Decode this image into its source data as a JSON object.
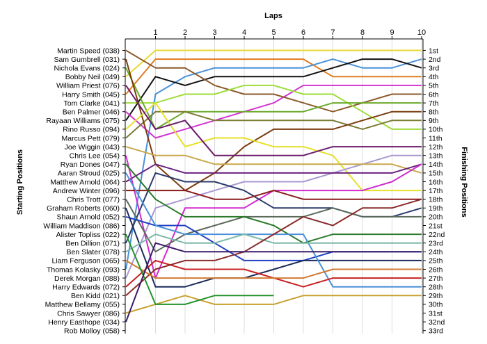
{
  "chart_data": {
    "type": "line",
    "title": "",
    "top_axis_label": "Laps",
    "left_axis_label": "Starting Positions",
    "right_axis_label": "Finishing Positions",
    "laps": [
      1,
      2,
      3,
      4,
      5,
      6,
      7,
      8,
      9,
      10
    ],
    "starting_order": [
      "Martin Speed (038)",
      "Sam Gumbrell (031)",
      "Nichola Evans (024)",
      "Bobby Neil (049)",
      "William Priest (076)",
      "Harry Smith (045)",
      "Tom Clarke (041)",
      "Ben Palmer (046)",
      "Rayaan Williams (075)",
      "Rino Russo (094)",
      "Marcus Pett (079)",
      "Joe Wiggin (043)",
      "Chris Lee (054)",
      "Ryan Dones (047)",
      "Aaran Stroud (025)",
      "Matthew Arnold (064)",
      "Andrew Winter (096)",
      "Chris Trott (077)",
      "Graham Roberts (060)",
      "Shaun Arnold (052)",
      "William Maddison (086)",
      "Alister Topliss (022)",
      "Ben Dillion (071)",
      "Ben Slater (078)",
      "Liam Ferguson (065)",
      "Thomas Kolasky (093)",
      "Derek Morgan (088)",
      "Harry Edwards (072)",
      "Ben Kidd (021)",
      "Matthew Bellamy (055)",
      "Chris Sawyer (086)",
      "Henry Easthope (034)",
      "Rob Molloy (058)"
    ],
    "finishing_positions": [
      "1st",
      "2nd",
      "3rd",
      "4th",
      "5th",
      "6th",
      "7th",
      "8th",
      "9th",
      "10th",
      "11th",
      "12th",
      "13th",
      "14th",
      "15th",
      "16th",
      "17th",
      "18th",
      "19th",
      "20th",
      "21st",
      "22nd",
      "23rd",
      "24th",
      "25th",
      "26th",
      "27th",
      "28th",
      "29th",
      "30th",
      "31st",
      "32nd",
      "33rd"
    ],
    "series": [
      {
        "color": "#e8d832",
        "positions": [
          4,
          1,
          1,
          1,
          1,
          1,
          1,
          1,
          1,
          1,
          1
        ]
      },
      {
        "color": "#e07a20",
        "positions": [
          6,
          2,
          2,
          2,
          2,
          2,
          2,
          4,
          4,
          4,
          4
        ]
      },
      {
        "color": "#4a90d9",
        "positions": [
          26,
          6,
          4,
          3,
          3,
          3,
          3,
          2,
          3,
          3,
          2
        ]
      },
      {
        "color": "#111111",
        "positions": [
          9,
          4,
          5,
          4,
          4,
          4,
          4,
          3,
          2,
          2,
          3
        ]
      },
      {
        "color": "#d234d2",
        "positions": [
          8,
          11,
          10,
          9,
          8,
          7,
          5,
          5,
          5,
          5,
          5
        ]
      },
      {
        "color": "#8b5a2b",
        "positions": [
          1,
          3,
          3,
          5,
          6,
          6,
          7,
          8,
          7,
          6,
          6
        ]
      },
      {
        "color": "#9edc3a",
        "positions": [
          7,
          7,
          6,
          6,
          5,
          5,
          6,
          6,
          8,
          10,
          10
        ]
      },
      {
        "color": "#6aaa2a",
        "positions": [
          3,
          10,
          8,
          8,
          8,
          8,
          8,
          7,
          7,
          7,
          7
        ]
      },
      {
        "color": "#7b7a32",
        "positions": [
          11,
          8,
          8,
          9,
          9,
          9,
          9,
          9,
          10,
          9,
          9
        ]
      },
      {
        "color": "#7a3c10",
        "positions": [
          2,
          14,
          17,
          15,
          12,
          10,
          10,
          10,
          9,
          8,
          8
        ]
      },
      {
        "color": "#e6e02a",
        "positions": [
          10,
          7,
          12,
          11,
          11,
          12,
          12,
          13,
          17,
          17,
          17
        ]
      },
      {
        "color": "#6a1a6a",
        "positions": [
          5,
          10,
          9,
          13,
          13,
          13,
          13,
          12,
          12,
          12,
          12
        ]
      },
      {
        "color": "#a898d0",
        "positions": [
          27,
          19,
          18,
          17,
          16,
          16,
          16,
          15,
          14,
          13,
          13
        ]
      },
      {
        "color": "#c8a84a",
        "positions": [
          12,
          13,
          13,
          14,
          14,
          14,
          14,
          14,
          14,
          14,
          15
        ]
      },
      {
        "color": "#6a2080",
        "positions": [
          16,
          14,
          15,
          15,
          15,
          15,
          15,
          15,
          15,
          15,
          14
        ]
      },
      {
        "color": "#d02ad0",
        "positions": [
          13,
          27,
          19,
          19,
          19,
          17,
          17,
          17,
          17,
          16,
          14
        ]
      },
      {
        "color": "#2a3a6a",
        "positions": [
          23,
          15,
          16,
          16,
          17,
          19,
          19,
          19,
          20,
          20,
          19
        ]
      },
      {
        "color": "#8a1a1a",
        "positions": [
          17,
          17,
          17,
          18,
          18,
          17,
          18,
          18,
          18,
          18,
          18
        ]
      },
      {
        "color": "#5a6a5a",
        "positions": [
          18,
          24,
          22,
          21,
          20,
          20,
          20,
          19,
          20,
          20,
          20
        ]
      },
      {
        "color": "#2a7a2a",
        "positions": [
          14,
          18,
          20,
          20,
          20,
          21,
          23,
          22,
          22,
          22,
          22
        ]
      },
      {
        "color": "#2040c0",
        "positions": [
          20,
          21,
          21,
          23,
          25,
          25,
          25,
          24,
          24,
          24,
          24
        ]
      },
      {
        "color": "#1a2a5a",
        "positions": [
          19,
          28,
          28,
          27,
          27,
          26,
          25,
          25,
          25,
          25,
          25
        ]
      },
      {
        "color": "#4a90d9",
        "positions": [
          15,
          21,
          22,
          22,
          22,
          22,
          22,
          28,
          28,
          28,
          28
        ]
      },
      {
        "color": "#7ab8a8",
        "positions": [
          24,
          22,
          23,
          23,
          22,
          23,
          23,
          23,
          23,
          23,
          23
        ]
      },
      {
        "color": "#c82020",
        "positions": [
          28,
          25,
          26,
          26,
          26,
          27,
          28,
          27,
          27,
          27,
          27
        ]
      },
      {
        "color": "#8a2a2a",
        "positions": [
          29,
          26,
          25,
          25,
          24,
          22,
          20,
          21,
          19,
          19,
          18
        ]
      },
      {
        "color": "#d07a30",
        "positions": [
          25,
          27,
          27,
          27,
          27,
          27,
          27,
          26,
          26,
          26,
          26
        ]
      },
      {
        "color": "#c8a030",
        "positions": [
          31,
          30,
          29,
          30,
          30,
          30,
          29,
          29,
          29,
          29,
          29
        ]
      },
      {
        "color": "#22922a",
        "positions": [
          22,
          30,
          30,
          29,
          29,
          29,
          null,
          null,
          null,
          null,
          null
        ]
      },
      {
        "color": "#3a1a6a",
        "positions": [
          32,
          23,
          24,
          24,
          24,
          24,
          24,
          24,
          24,
          24,
          24
        ]
      }
    ]
  }
}
